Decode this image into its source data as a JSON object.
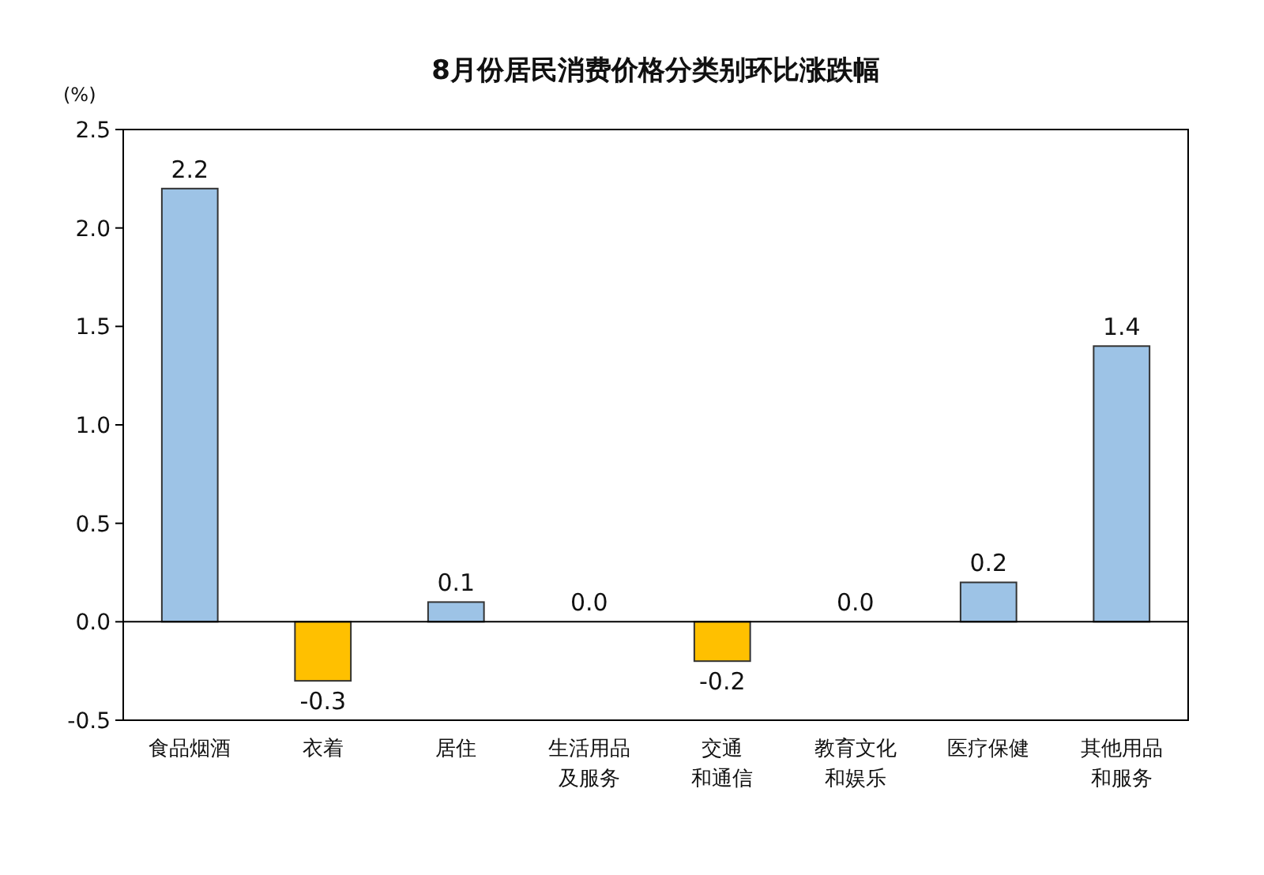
{
  "chart_data": {
    "type": "bar",
    "title": "8月份居民消费价格分类别环比涨跌幅",
    "ylabel": "(%)",
    "categories": [
      "食品烟酒",
      "衣着",
      "居住",
      "生活用品及服务",
      "交通和通信",
      "教育文化和娱乐",
      "医疗保健",
      "其他用品和服务"
    ],
    "values": [
      2.2,
      -0.3,
      0.1,
      0.0,
      -0.2,
      0.0,
      0.2,
      1.4
    ],
    "value_labels": [
      "2.2",
      "-0.3",
      "0.1",
      "0.0",
      "-0.2",
      "0.0",
      "0.2",
      "1.4"
    ],
    "colors": [
      "#9dc3e6",
      "#ffc000",
      "#9dc3e6",
      "#9dc3e6",
      "#ffc000",
      "#9dc3e6",
      "#9dc3e6",
      "#9dc3e6"
    ],
    "ylim": [
      -0.5,
      2.5
    ],
    "yticks": [
      {
        "value": -0.5,
        "label": "-0.5"
      },
      {
        "value": 0,
        "label": "0.0"
      },
      {
        "value": 0.5,
        "label": "0.5"
      },
      {
        "value": 1,
        "label": "1.0"
      },
      {
        "value": 1.5,
        "label": "1.5"
      },
      {
        "value": 2,
        "label": "2.0"
      },
      {
        "value": 2.5,
        "label": "2.5"
      }
    ]
  }
}
